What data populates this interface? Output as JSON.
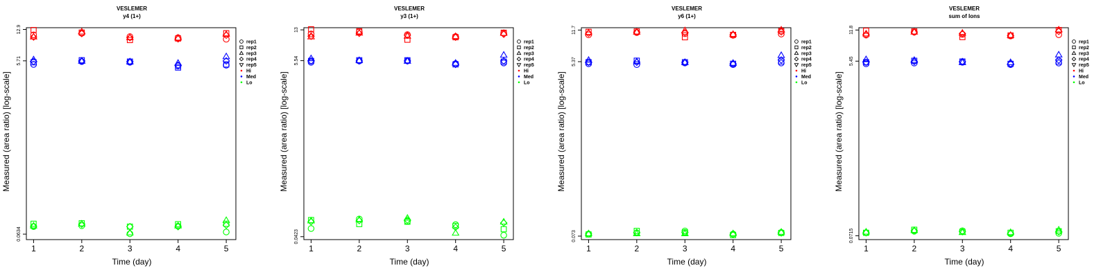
{
  "colors": {
    "Hi": "#ff0000",
    "Med": "#0000ff",
    "Lo": "#00ff00",
    "axis": "#000000"
  },
  "legend": {
    "placement": "right-top",
    "entries": [
      {
        "label": "rep1",
        "marker": "circle"
      },
      {
        "label": "rep2",
        "marker": "square"
      },
      {
        "label": "rep3",
        "marker": "triangle-up"
      },
      {
        "label": "rep4",
        "marker": "diamond"
      },
      {
        "label": "rep5",
        "marker": "triangle-down"
      },
      {
        "label": "Hi",
        "marker": "dot",
        "color": "#ff0000"
      },
      {
        "label": "Med",
        "marker": "dot",
        "color": "#0000ff"
      },
      {
        "label": "Lo",
        "marker": "dot",
        "color": "#00ff00"
      }
    ]
  },
  "chart_data": [
    {
      "type": "scatter",
      "title": "VESLEMER",
      "subtitle": "y4 (1+)",
      "xlabel": "Time (day)",
      "ylabel": "Measured (area ratio) [log-scale]",
      "y_scale": "log",
      "x_ticks": [
        1,
        2,
        3,
        4,
        5
      ],
      "y_ticks": [
        {
          "value": 0.0634,
          "label": "0.0634"
        },
        {
          "value": 5.71,
          "label": "5.71"
        },
        {
          "value": 12.9,
          "label": "12.9"
        }
      ],
      "ylim": [
        0.055,
        13.5
      ],
      "xlim": [
        0.85,
        5.2
      ],
      "series": [
        {
          "name": "Hi",
          "replicates": [
            {
              "rep": "rep1",
              "values": [
                11.2,
                11.7,
                10.7,
                10.4,
                10.0
              ]
            },
            {
              "rep": "rep2",
              "values": [
                12.7,
                11.9,
                9.8,
                10.2,
                11.7
              ]
            },
            {
              "rep": "rep3",
              "values": [
                10.7,
                12.2,
                10.5,
                10.4,
                11.4
              ]
            },
            {
              "rep": "rep4",
              "values": [
                10.6,
                11.6,
                10.4,
                10.1,
                11.1
              ]
            }
          ]
        },
        {
          "name": "Med",
          "replicates": [
            {
              "rep": "rep1",
              "values": [
                5.2,
                5.6,
                5.5,
                5.0,
                5.1
              ]
            },
            {
              "rep": "rep2",
              "values": [
                5.5,
                5.8,
                5.6,
                4.8,
                5.2
              ]
            },
            {
              "rep": "rep3",
              "values": [
                5.9,
                5.7,
                5.6,
                5.4,
                6.4
              ]
            },
            {
              "rep": "rep4",
              "values": [
                5.6,
                5.7,
                5.6,
                5.1,
                5.7
              ]
            }
          ]
        },
        {
          "name": "Lo",
          "replicates": [
            {
              "rep": "rep1",
              "values": [
                0.077,
                0.079,
                0.064,
                0.078,
                0.067
              ]
            },
            {
              "rep": "rep2",
              "values": [
                0.083,
                0.084,
                0.077,
                0.082,
                0.083
              ]
            },
            {
              "rep": "rep3",
              "values": [
                0.079,
                0.083,
                0.066,
                0.079,
                0.091
              ]
            },
            {
              "rep": "rep4",
              "values": [
                0.078,
                0.082,
                0.077,
                0.077,
                0.08
              ]
            }
          ]
        }
      ]
    },
    {
      "type": "scatter",
      "title": "VESLEMER",
      "subtitle": "y3 (1+)",
      "xlabel": "Time (day)",
      "ylabel": "Measured (area ratio) [log-scale]",
      "y_scale": "log",
      "x_ticks": [
        1,
        2,
        3,
        4,
        5
      ],
      "y_ticks": [
        {
          "value": 0.0423,
          "label": "0.0423"
        },
        {
          "value": 5.54,
          "label": "5.54"
        },
        {
          "value": 13,
          "label": "13"
        }
      ],
      "ylim": [
        0.039,
        13.8
      ],
      "xlim": [
        0.85,
        5.2
      ],
      "series": [
        {
          "name": "Hi",
          "replicates": [
            {
              "rep": "rep1",
              "values": [
                11.6,
                12.3,
                11.4,
                10.8,
                11.8
              ]
            },
            {
              "rep": "rep2",
              "values": [
                13.2,
                12.5,
                9.9,
                10.6,
                12.0
              ]
            },
            {
              "rep": "rep3",
              "values": [
                10.8,
                12.0,
                11.0,
                10.9,
                11.9
              ]
            },
            {
              "rep": "rep4",
              "values": [
                10.9,
                11.8,
                11.2,
                10.6,
                11.5
              ]
            }
          ]
        },
        {
          "name": "Med",
          "replicates": [
            {
              "rep": "rep1",
              "values": [
                5.3,
                5.5,
                5.5,
                5.1,
                5.2
              ]
            },
            {
              "rep": "rep2",
              "values": [
                5.5,
                5.6,
                5.6,
                5.0,
                5.4
              ]
            },
            {
              "rep": "rep3",
              "values": [
                5.9,
                5.6,
                5.5,
                5.2,
                6.5
              ]
            },
            {
              "rep": "rep4",
              "values": [
                5.5,
                5.5,
                5.5,
                5.0,
                5.5
              ]
            }
          ]
        },
        {
          "name": "Lo",
          "replicates": [
            {
              "rep": "rep1",
              "values": [
                0.053,
                0.069,
                0.065,
                0.059,
                0.044
              ]
            },
            {
              "rep": "rep2",
              "values": [
                0.067,
                0.06,
                0.064,
                0.057,
                0.052
              ]
            },
            {
              "rep": "rep3",
              "values": [
                0.066,
                0.068,
                0.071,
                0.047,
                0.064
              ]
            },
            {
              "rep": "rep4",
              "values": [
                0.064,
                0.066,
                0.067,
                0.055,
                0.062
              ]
            }
          ]
        }
      ]
    },
    {
      "type": "scatter",
      "title": "VESLEMER",
      "subtitle": "y6 (1+)",
      "xlabel": "Time (day)",
      "ylabel": "Measured (area ratio) [log-scale]",
      "y_scale": "log",
      "x_ticks": [
        1,
        2,
        3,
        4,
        5
      ],
      "y_ticks": [
        {
          "value": 0.073,
          "label": "0.073"
        },
        {
          "value": 5.37,
          "label": "5.37"
        },
        {
          "value": 11.7,
          "label": "11.7"
        }
      ],
      "ylim": [
        0.067,
        12.4
      ],
      "xlim": [
        0.85,
        5.2
      ],
      "series": [
        {
          "name": "Hi",
          "replicates": [
            {
              "rep": "rep1",
              "values": [
                10.4,
                11.0,
                10.7,
                10.3,
                10.6
              ]
            },
            {
              "rep": "rep2",
              "values": [
                11.2,
                11.3,
                9.8,
                10.4,
                11.4
              ]
            },
            {
              "rep": "rep3",
              "values": [
                11.0,
                11.2,
                11.6,
                10.6,
                11.8
              ]
            },
            {
              "rep": "rep4",
              "values": [
                10.8,
                11.1,
                11.0,
                10.4,
                11.2
              ]
            }
          ]
        },
        {
          "name": "Med",
          "replicates": [
            {
              "rep": "rep1",
              "values": [
                5.1,
                5.0,
                5.2,
                5.0,
                5.2
              ]
            },
            {
              "rep": "rep2",
              "values": [
                5.3,
                5.5,
                5.3,
                5.1,
                5.4
              ]
            },
            {
              "rep": "rep3",
              "values": [
                5.6,
                5.4,
                5.3,
                5.2,
                6.3
              ]
            },
            {
              "rep": "rep4",
              "values": [
                5.3,
                5.3,
                5.3,
                5.1,
                5.6
              ]
            }
          ]
        },
        {
          "name": "Lo",
          "replicates": [
            {
              "rep": "rep1",
              "values": [
                0.077,
                0.079,
                0.083,
                0.077,
                0.08
              ]
            },
            {
              "rep": "rep2",
              "values": [
                0.076,
                0.083,
                0.08,
                0.075,
                0.079
              ]
            },
            {
              "rep": "rep3",
              "values": [
                0.078,
                0.078,
                0.078,
                0.078,
                0.081
              ]
            },
            {
              "rep": "rep4",
              "values": [
                0.077,
                0.08,
                0.08,
                0.076,
                0.079
              ]
            }
          ]
        }
      ]
    },
    {
      "type": "scatter",
      "title": "VESLEMER",
      "subtitle": "sum of Ions",
      "xlabel": "Time (day)",
      "ylabel": "Measured (area ratio) [log-scale]",
      "y_scale": "log",
      "x_ticks": [
        1,
        2,
        3,
        4,
        5
      ],
      "y_ticks": [
        {
          "value": 0.0715,
          "label": "0.0715"
        },
        {
          "value": 5.45,
          "label": "5.45"
        },
        {
          "value": 11.8,
          "label": "11.8"
        }
      ],
      "ylim": [
        0.065,
        12.5
      ],
      "xlim": [
        0.85,
        5.2
      ],
      "series": [
        {
          "name": "Hi",
          "replicates": [
            {
              "rep": "rep1",
              "values": [
                10.4,
                11.2,
                10.6,
                10.2,
                10.5
              ]
            },
            {
              "rep": "rep2",
              "values": [
                11.6,
                11.4,
                9.9,
                10.3,
                11.8
              ]
            },
            {
              "rep": "rep3",
              "values": [
                10.8,
                11.3,
                11.0,
                10.4,
                11.9
              ]
            },
            {
              "rep": "rep4",
              "values": [
                10.6,
                11.2,
                10.8,
                10.3,
                11.4
              ]
            }
          ]
        },
        {
          "name": "Med",
          "replicates": [
            {
              "rep": "rep1",
              "values": [
                5.1,
                5.2,
                5.3,
                5.0,
                5.2
              ]
            },
            {
              "rep": "rep2",
              "values": [
                5.3,
                5.5,
                5.4,
                5.1,
                5.4
              ]
            },
            {
              "rep": "rep3",
              "values": [
                5.7,
                5.6,
                5.3,
                5.3,
                6.4
              ]
            },
            {
              "rep": "rep4",
              "values": [
                5.3,
                5.4,
                5.4,
                5.1,
                5.6
              ]
            }
          ]
        },
        {
          "name": "Lo",
          "replicates": [
            {
              "rep": "rep1",
              "values": [
                0.077,
                0.08,
                0.081,
                0.075,
                0.076
              ]
            },
            {
              "rep": "rep2",
              "values": [
                0.077,
                0.083,
                0.079,
                0.077,
                0.08
              ]
            },
            {
              "rep": "rep3",
              "values": [
                0.079,
                0.082,
                0.078,
                0.078,
                0.083
              ]
            },
            {
              "rep": "rep4",
              "values": [
                0.077,
                0.081,
                0.079,
                0.076,
                0.079
              ]
            }
          ]
        }
      ]
    }
  ]
}
